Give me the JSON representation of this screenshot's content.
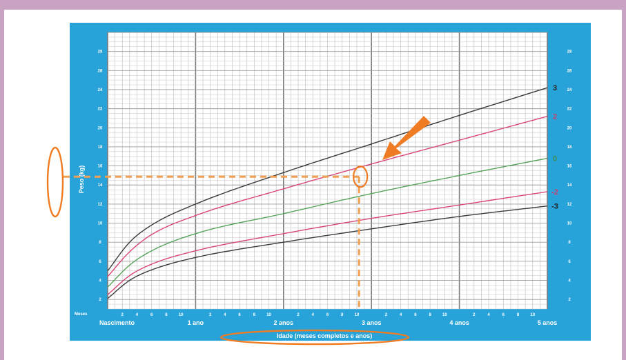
{
  "chart_data": {
    "type": "line",
    "x_label": "Idade (meses completos e anos)",
    "y_label": "Peso (kg)",
    "month_axis_label": "Meses",
    "xlim": [
      0,
      60
    ],
    "ylim": [
      1,
      30
    ],
    "y_ticks": [
      2,
      4,
      6,
      8,
      10,
      12,
      14,
      16,
      18,
      20,
      22,
      24,
      26,
      28
    ],
    "x_major": [
      {
        "x": 0,
        "label": "Nascimento"
      },
      {
        "x": 12,
        "label": "1 ano"
      },
      {
        "x": 24,
        "label": "2 anos"
      },
      {
        "x": 36,
        "label": "3 anos"
      },
      {
        "x": 48,
        "label": "4 anos"
      },
      {
        "x": 60,
        "label": "5 anos"
      }
    ],
    "month_ticks": [
      "2",
      "4",
      "6",
      "8",
      "10",
      "2",
      "4",
      "6",
      "8",
      "10",
      "2",
      "4",
      "6",
      "8",
      "10",
      "2",
      "4",
      "6",
      "8",
      "10",
      "2",
      "4",
      "6",
      "8",
      "10"
    ],
    "series": [
      {
        "name": "3",
        "color": "#3a3a3a",
        "x": [
          0,
          3,
          6,
          12,
          24,
          36,
          48,
          60
        ],
        "y": [
          5.0,
          8.0,
          9.8,
          12.0,
          15.3,
          18.3,
          21.3,
          24.2
        ]
      },
      {
        "name": "2",
        "color": "#d9457a",
        "x": [
          0,
          3,
          6,
          12,
          24,
          36,
          48,
          60
        ],
        "y": [
          4.4,
          7.0,
          8.8,
          10.8,
          13.6,
          16.2,
          18.7,
          21.2
        ]
      },
      {
        "name": "0",
        "color": "#55a35a",
        "x": [
          0,
          3,
          6,
          12,
          24,
          36,
          48,
          60
        ],
        "y": [
          3.3,
          5.6,
          7.1,
          8.9,
          11.0,
          13.1,
          15.0,
          16.8
        ]
      },
      {
        "name": "-2",
        "color": "#d9457a",
        "x": [
          0,
          3,
          6,
          12,
          24,
          36,
          48,
          60
        ],
        "y": [
          2.5,
          4.5,
          5.7,
          7.1,
          8.9,
          10.5,
          11.9,
          13.3
        ]
      },
      {
        "name": "-3",
        "color": "#3a3a3a",
        "x": [
          0,
          3,
          6,
          12,
          24,
          36,
          48,
          60
        ],
        "y": [
          2.1,
          4.0,
          5.1,
          6.4,
          8.0,
          9.4,
          10.7,
          11.8
        ]
      }
    ],
    "highlight_point": {
      "x": 36,
      "y": 14
    }
  },
  "colors": {
    "panel": "#27a3d9",
    "plot_bg": "#ffffff",
    "grid_minor": "#c4c4c4",
    "grid_major": "#7a7a7a",
    "highlight": "#ef7b22",
    "dashed": "#f0a050",
    "frame": "#c9a3c2"
  },
  "annotations": {
    "circled_point": true,
    "pointer_arrow": true,
    "y_label_oval": true,
    "x_label_oval": true
  }
}
